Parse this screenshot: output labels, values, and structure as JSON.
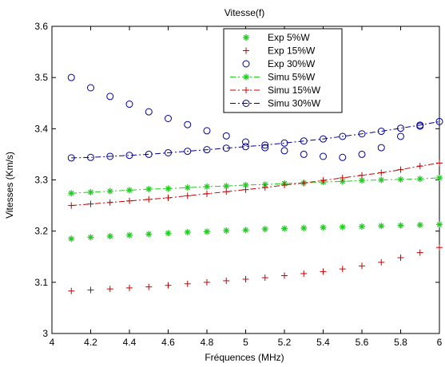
{
  "chart_data": {
    "type": "line",
    "title": "Vitesse(f)",
    "xlabel": "Fréquences (MHz)",
    "ylabel": "Vitesses (Km/s)",
    "xlim": [
      4,
      6
    ],
    "ylim": [
      3,
      3.6
    ],
    "xticks": [
      4,
      4.2,
      4.4,
      4.6,
      4.8,
      5,
      5.2,
      5.4,
      5.6,
      5.8,
      6
    ],
    "xtick_labels": [
      "4",
      "4.2",
      "4.4",
      "4.6",
      "4.8",
      "5",
      "5.2",
      "5.4",
      "5.6",
      "5.8",
      "6"
    ],
    "yticks": [
      3,
      3.1,
      3.2,
      3.3,
      3.4,
      3.5,
      3.6
    ],
    "ytick_labels": [
      "3",
      "3.1",
      "3.2",
      "3.3",
      "3.4",
      "3.5",
      "3.6"
    ],
    "grid": false,
    "legend_position": "top-center",
    "x": [
      4.1,
      4.2,
      4.3,
      4.4,
      4.5,
      4.6,
      4.7,
      4.8,
      4.9,
      5.0,
      5.1,
      5.2,
      5.3,
      5.4,
      5.5,
      5.6,
      5.7,
      5.8,
      5.9,
      6.0
    ],
    "series": [
      {
        "name": "Exp 5%W",
        "color": "#22cc22",
        "marker": "asterisk",
        "line": "none",
        "values": [
          3.185,
          3.188,
          3.19,
          3.192,
          3.194,
          3.196,
          3.198,
          3.199,
          3.201,
          3.202,
          3.204,
          3.205,
          3.206,
          3.207,
          3.208,
          3.209,
          3.21,
          3.211,
          3.212,
          3.213
        ]
      },
      {
        "name": "Exp 15%W",
        "color": "#cc0000",
        "marker": "plus",
        "line": "none",
        "values": [
          3.083,
          3.085,
          3.087,
          3.089,
          3.091,
          3.094,
          3.097,
          3.1,
          3.103,
          3.106,
          3.109,
          3.113,
          3.117,
          3.121,
          3.126,
          3.132,
          3.139,
          3.148,
          3.158,
          3.168
        ]
      },
      {
        "name": "Exp 30%W",
        "color": "#000099",
        "marker": "circle",
        "line": "none",
        "values": [
          3.5,
          3.48,
          3.463,
          3.448,
          3.433,
          3.42,
          3.408,
          3.396,
          3.386,
          3.374,
          3.363,
          3.357,
          3.35,
          3.346,
          3.344,
          3.35,
          3.363,
          3.385,
          3.405,
          null
        ]
      },
      {
        "name": "Simu 5%W",
        "color": "#22cc22",
        "marker": "asterisk",
        "line": "dash-dot",
        "values": [
          3.274,
          3.276,
          3.278,
          3.28,
          3.282,
          3.283,
          3.285,
          3.287,
          3.288,
          3.29,
          3.291,
          3.293,
          3.294,
          3.296,
          3.297,
          3.299,
          3.3,
          3.301,
          3.302,
          3.304
        ]
      },
      {
        "name": "Simu 15%W",
        "color": "#cc0000",
        "marker": "plus",
        "line": "dash-dot",
        "values": [
          3.25,
          3.253,
          3.256,
          3.259,
          3.262,
          3.265,
          3.269,
          3.273,
          3.277,
          3.281,
          3.285,
          3.29,
          3.294,
          3.299,
          3.304,
          3.309,
          3.314,
          3.32,
          3.327,
          3.333
        ]
      },
      {
        "name": "Simu 30%W",
        "color": "#000099",
        "marker": "circle",
        "line": "dash-dot",
        "values": [
          3.343,
          3.344,
          3.346,
          3.348,
          3.35,
          3.353,
          3.356,
          3.359,
          3.362,
          3.365,
          3.368,
          3.372,
          3.376,
          3.38,
          3.385,
          3.39,
          3.395,
          3.401,
          3.407,
          3.414
        ]
      }
    ]
  }
}
